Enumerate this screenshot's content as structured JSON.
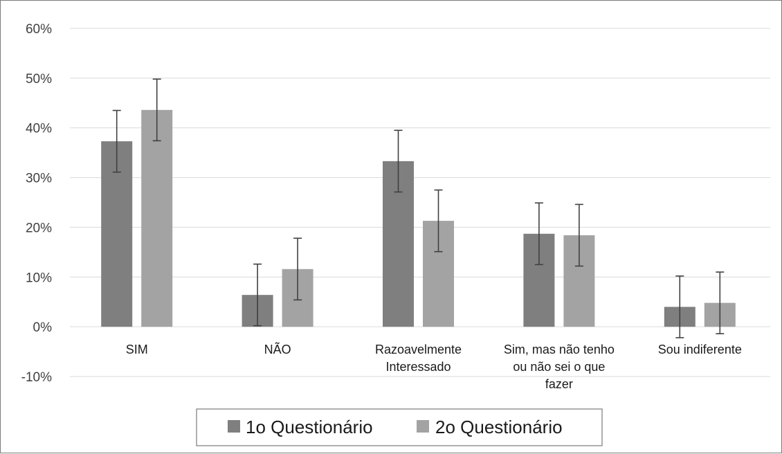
{
  "chart_data": {
    "type": "bar",
    "categories": [
      [
        "SIM"
      ],
      [
        "NÃO"
      ],
      [
        "Razoavelmente",
        "Interessado"
      ],
      [
        "Sim, mas não tenho",
        "ou não sei o que",
        "fazer"
      ],
      [
        "Sou indiferente"
      ]
    ],
    "series": [
      {
        "name": "1o Questionário",
        "color": "#7f7f7f",
        "values": [
          37.3,
          6.4,
          33.3,
          18.7,
          4.0
        ],
        "error": [
          6.2,
          6.2,
          6.2,
          6.2,
          6.2
        ]
      },
      {
        "name": "2o Questionário",
        "color": "#a3a3a3",
        "values": [
          43.6,
          11.6,
          21.3,
          18.4,
          4.8
        ],
        "error": [
          6.2,
          6.2,
          6.2,
          6.2,
          6.2
        ]
      }
    ],
    "ylim": [
      -10,
      60
    ],
    "yticks": [
      "60%",
      "50%",
      "40%",
      "30%",
      "20%",
      "10%",
      "0%",
      "-10%"
    ],
    "ytick_values": [
      60,
      50,
      40,
      30,
      20,
      10,
      0,
      -10
    ],
    "grid": true,
    "legend_position": "bottom",
    "xlabel": "",
    "ylabel": ""
  }
}
